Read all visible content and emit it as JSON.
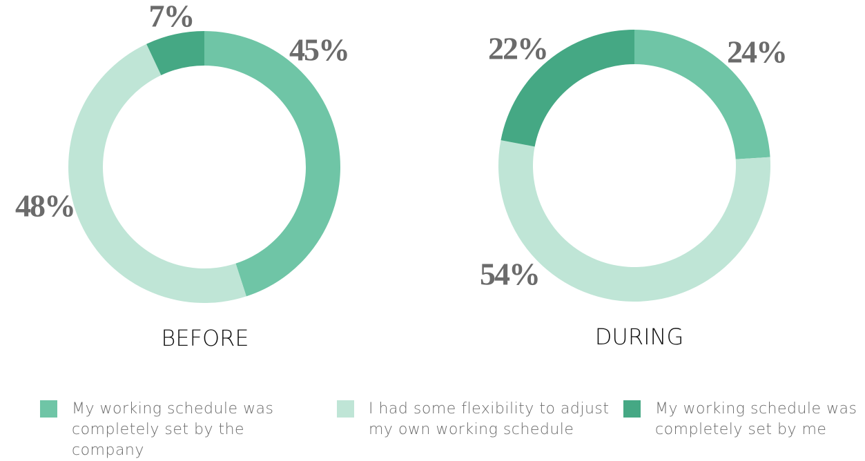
{
  "chart_data": {
    "type": "pie",
    "categories": [
      "My working schedule was completely set by the company",
      "I had some flexibility to adjust my own working schedule",
      "My working schedule was completely set by me"
    ],
    "colors": [
      "#6fc5a6",
      "#bfe5d6",
      "#45a884"
    ],
    "series": [
      {
        "name": "BEFORE",
        "values": [
          45,
          48,
          7
        ],
        "value_labels": [
          "45%",
          "48%",
          "7%"
        ]
      },
      {
        "name": "DURING",
        "values": [
          24,
          54,
          22
        ],
        "value_labels": [
          "24%",
          "54%",
          "22%"
        ]
      }
    ]
  }
}
